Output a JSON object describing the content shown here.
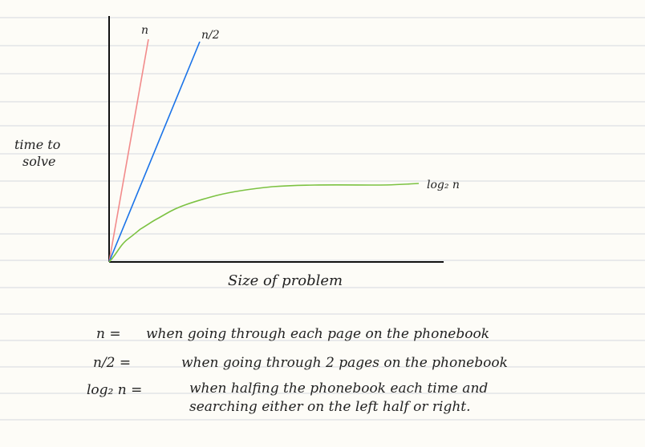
{
  "diagram": {
    "y_axis_label_line1": "time to",
    "y_axis_label_line2": "solve",
    "x_axis_label": "Size of problem",
    "curves": [
      {
        "label": "n",
        "color": "#f28b8b"
      },
      {
        "label": "n/2",
        "color": "#1a73e8"
      },
      {
        "label": "log₂ n",
        "color": "#7cc242"
      }
    ]
  },
  "notes": [
    {
      "term": "n =",
      "description": "when going through each page on the phonebook"
    },
    {
      "term": "n/2 =",
      "description": "when going through 2 pages on the phonebook"
    },
    {
      "term": "log₂ n =",
      "description": "when halfing the phonebook each time and"
    },
    {
      "term": "",
      "description": "searching either on the left half or right."
    }
  ]
}
